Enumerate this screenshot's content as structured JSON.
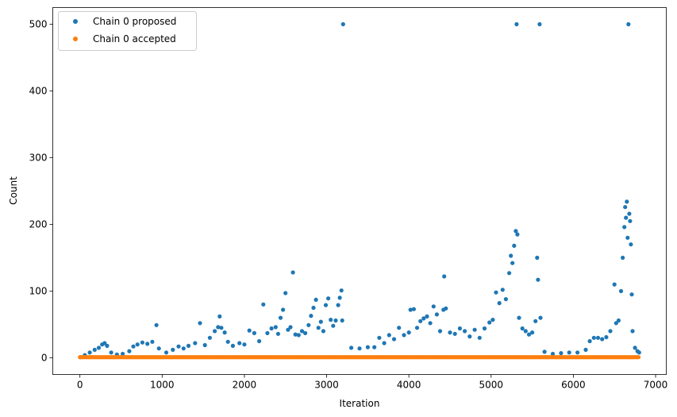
{
  "chart_data": {
    "type": "scatter",
    "xlabel": "Iteration",
    "ylabel": "Count",
    "xlim": [
      -330,
      7130
    ],
    "ylim": [
      -25,
      525
    ],
    "xticks": [
      0,
      1000,
      2000,
      3000,
      4000,
      5000,
      6000,
      7000
    ],
    "yticks": [
      0,
      100,
      200,
      300,
      400,
      500
    ],
    "grid": false,
    "legend_position": "top-left",
    "series": [
      {
        "name": "Chain 0 proposed",
        "color": "#1f77b4",
        "points": [
          [
            5,
            1
          ],
          [
            60,
            4
          ],
          [
            120,
            8
          ],
          [
            180,
            12
          ],
          [
            230,
            15
          ],
          [
            270,
            20
          ],
          [
            300,
            22
          ],
          [
            330,
            18
          ],
          [
            380,
            8
          ],
          [
            450,
            5
          ],
          [
            520,
            6
          ],
          [
            600,
            10
          ],
          [
            650,
            17
          ],
          [
            700,
            20
          ],
          [
            760,
            23
          ],
          [
            820,
            21
          ],
          [
            880,
            24
          ],
          [
            930,
            49
          ],
          [
            960,
            14
          ],
          [
            1050,
            8
          ],
          [
            1130,
            12
          ],
          [
            1200,
            17
          ],
          [
            1260,
            14
          ],
          [
            1320,
            18
          ],
          [
            1400,
            22
          ],
          [
            1460,
            52
          ],
          [
            1520,
            19
          ],
          [
            1580,
            30
          ],
          [
            1640,
            40
          ],
          [
            1680,
            46
          ],
          [
            1700,
            62
          ],
          [
            1720,
            45
          ],
          [
            1760,
            38
          ],
          [
            1800,
            24
          ],
          [
            1860,
            18
          ],
          [
            1940,
            22
          ],
          [
            2000,
            20
          ],
          [
            2060,
            41
          ],
          [
            2120,
            37
          ],
          [
            2180,
            25
          ],
          [
            2230,
            80
          ],
          [
            2280,
            37
          ],
          [
            2330,
            44
          ],
          [
            2380,
            46
          ],
          [
            2410,
            36
          ],
          [
            2440,
            60
          ],
          [
            2470,
            72
          ],
          [
            2500,
            97
          ],
          [
            2530,
            42
          ],
          [
            2560,
            46
          ],
          [
            2590,
            128
          ],
          [
            2620,
            35
          ],
          [
            2660,
            34
          ],
          [
            2700,
            40
          ],
          [
            2740,
            37
          ],
          [
            2780,
            49
          ],
          [
            2810,
            63
          ],
          [
            2840,
            75
          ],
          [
            2870,
            87
          ],
          [
            2900,
            45
          ],
          [
            2930,
            54
          ],
          [
            2960,
            40
          ],
          [
            2990,
            79
          ],
          [
            3020,
            89
          ],
          [
            3050,
            57
          ],
          [
            3080,
            48
          ],
          [
            3110,
            56
          ],
          [
            3140,
            79
          ],
          [
            3160,
            90
          ],
          [
            3180,
            101
          ],
          [
            3190,
            56
          ],
          [
            3200,
            500
          ],
          [
            3300,
            15
          ],
          [
            3400,
            14
          ],
          [
            3500,
            16
          ],
          [
            3580,
            16
          ],
          [
            3640,
            30
          ],
          [
            3700,
            22
          ],
          [
            3760,
            34
          ],
          [
            3820,
            28
          ],
          [
            3880,
            45
          ],
          [
            3940,
            34
          ],
          [
            4000,
            38
          ],
          [
            4020,
            72
          ],
          [
            4060,
            73
          ],
          [
            4100,
            45
          ],
          [
            4140,
            55
          ],
          [
            4180,
            59
          ],
          [
            4220,
            62
          ],
          [
            4260,
            52
          ],
          [
            4300,
            77
          ],
          [
            4340,
            65
          ],
          [
            4380,
            40
          ],
          [
            4420,
            72
          ],
          [
            4430,
            122
          ],
          [
            4450,
            74
          ],
          [
            4500,
            38
          ],
          [
            4560,
            36
          ],
          [
            4620,
            44
          ],
          [
            4680,
            40
          ],
          [
            4740,
            32
          ],
          [
            4800,
            42
          ],
          [
            4860,
            30
          ],
          [
            4920,
            44
          ],
          [
            4980,
            53
          ],
          [
            5020,
            57
          ],
          [
            5060,
            98
          ],
          [
            5100,
            82
          ],
          [
            5140,
            102
          ],
          [
            5180,
            88
          ],
          [
            5220,
            127
          ],
          [
            5240,
            153
          ],
          [
            5260,
            142
          ],
          [
            5280,
            168
          ],
          [
            5300,
            190
          ],
          [
            5310,
            500
          ],
          [
            5320,
            185
          ],
          [
            5340,
            60
          ],
          [
            5380,
            44
          ],
          [
            5420,
            40
          ],
          [
            5460,
            35
          ],
          [
            5500,
            38
          ],
          [
            5540,
            55
          ],
          [
            5560,
            150
          ],
          [
            5570,
            117
          ],
          [
            5590,
            500
          ],
          [
            5600,
            60
          ],
          [
            5650,
            9
          ],
          [
            5750,
            6
          ],
          [
            5850,
            7
          ],
          [
            5950,
            8
          ],
          [
            6050,
            8
          ],
          [
            6150,
            12
          ],
          [
            6200,
            25
          ],
          [
            6250,
            30
          ],
          [
            6300,
            30
          ],
          [
            6350,
            28
          ],
          [
            6400,
            31
          ],
          [
            6450,
            40
          ],
          [
            6500,
            110
          ],
          [
            6520,
            52
          ],
          [
            6550,
            56
          ],
          [
            6580,
            100
          ],
          [
            6600,
            150
          ],
          [
            6620,
            196
          ],
          [
            6630,
            226
          ],
          [
            6640,
            210
          ],
          [
            6650,
            234
          ],
          [
            6660,
            180
          ],
          [
            6670,
            500
          ],
          [
            6680,
            216
          ],
          [
            6690,
            205
          ],
          [
            6700,
            170
          ],
          [
            6710,
            95
          ],
          [
            6720,
            40
          ],
          [
            6750,
            15
          ],
          [
            6780,
            10
          ],
          [
            6800,
            8
          ]
        ]
      },
      {
        "name": "Chain 0 accepted",
        "color": "#ff7f0e",
        "x_range": [
          0,
          6800
        ],
        "y_value": 1
      }
    ]
  }
}
